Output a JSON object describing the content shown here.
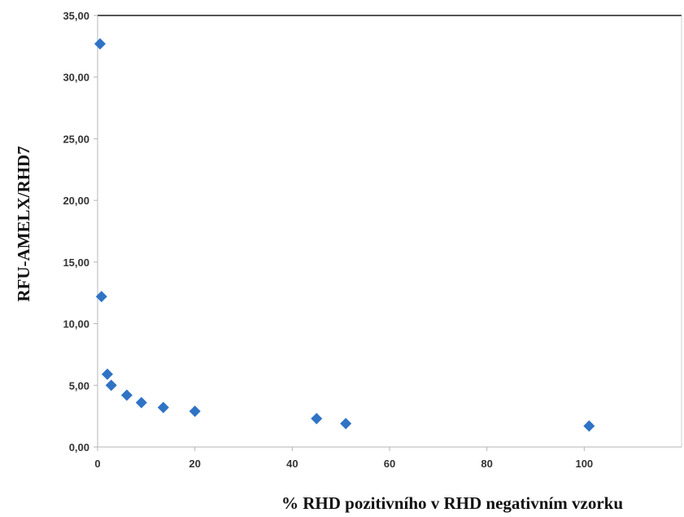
{
  "chart_data": {
    "type": "scatter",
    "title": "",
    "xlabel": "% RHD pozitivního v RHD negativním vzorku",
    "ylabel": "RFU-AMELX/RHD7",
    "xlim": [
      0,
      120
    ],
    "ylim": [
      0,
      35
    ],
    "x_ticks": [
      "0",
      "20",
      "40",
      "60",
      "80",
      "100"
    ],
    "x_tick_values": [
      0,
      20,
      40,
      60,
      80,
      100
    ],
    "y_ticks": [
      "0,00",
      "5,00",
      "10,00",
      "15,00",
      "20,00",
      "25,00",
      "30,00",
      "35,00"
    ],
    "y_tick_values": [
      0,
      5,
      10,
      15,
      20,
      25,
      30,
      35
    ],
    "grid": false,
    "marker_color": "#2f73c5",
    "marker_shape": "diamond",
    "series": [
      {
        "points": [
          {
            "x": 0.5,
            "y": 32.7
          },
          {
            "x": 0.8,
            "y": 12.2
          },
          {
            "x": 2,
            "y": 5.9
          },
          {
            "x": 2.8,
            "y": 5.0
          },
          {
            "x": 6,
            "y": 4.2
          },
          {
            "x": 9,
            "y": 3.6
          },
          {
            "x": 13.5,
            "y": 3.2
          },
          {
            "x": 20,
            "y": 2.9
          },
          {
            "x": 45,
            "y": 2.3
          },
          {
            "x": 51,
            "y": 1.9
          },
          {
            "x": 101,
            "y": 1.7
          }
        ]
      }
    ]
  }
}
